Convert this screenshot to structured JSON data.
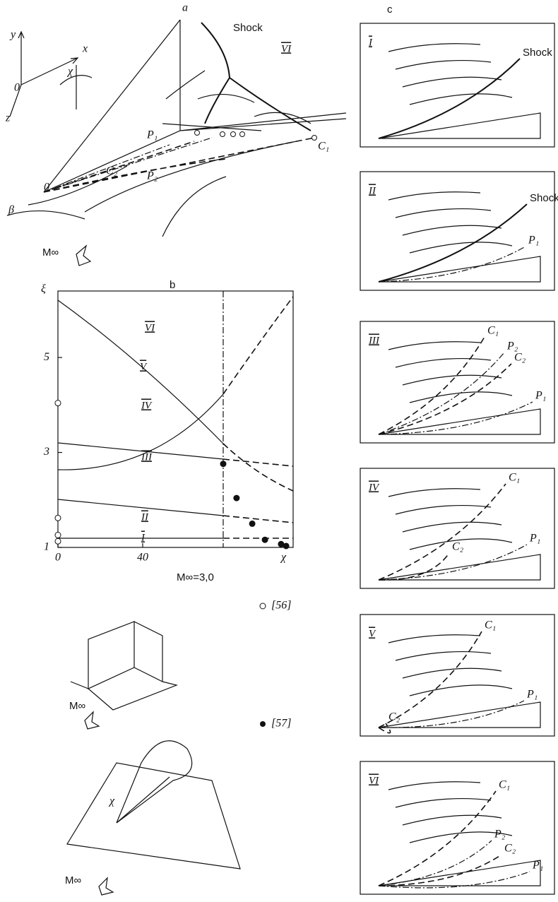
{
  "panel_a": {
    "label": "a",
    "shock": "Shock",
    "region": "VI",
    "axis_y": "y",
    "axis_x": "x",
    "axis_z": "z",
    "axis_origin": "0",
    "chi": "χ",
    "p1": "P₁",
    "c1": "C₁",
    "c2": "C₂",
    "p2": "P₂",
    "beta": "β",
    "apex": "0",
    "mach": "M∞"
  },
  "panel_b": {
    "label": "b",
    "y_label": "ξ",
    "x_label": "χ",
    "ylim": [
      1,
      6.4
    ],
    "yticks": [
      1,
      3,
      5
    ],
    "xlim": [
      0,
      111
    ],
    "xticks": [
      0,
      40
    ],
    "regions": [
      "I",
      "II",
      "III",
      "IV",
      "V",
      "VI"
    ],
    "open_points": {
      "x": [
        0,
        0,
        0,
        0
      ],
      "y": [
        4.04,
        1.62,
        1.26,
        1.13
      ]
    },
    "filled_points": {
      "x": [
        78,
        84.3,
        91.7,
        97.7,
        105.3,
        107.7
      ],
      "y": [
        2.76,
        2.04,
        1.5,
        1.16,
        1.07,
        1.03
      ]
    },
    "condition": "M∞=3,0",
    "legend": [
      "[56]",
      "[57]"
    ],
    "inset_mach": [
      "M∞",
      "M∞"
    ],
    "inset_chi": "χ"
  },
  "panel_c": {
    "label": "c",
    "panels": [
      {
        "numeral": "I",
        "labels": [
          "Shock"
        ]
      },
      {
        "numeral": "II",
        "labels": [
          "Shock",
          "P₁"
        ]
      },
      {
        "numeral": "III",
        "labels": [
          "C₁",
          "P₂",
          "C₂",
          "P₁"
        ]
      },
      {
        "numeral": "IV",
        "labels": [
          "C₁",
          "C₂",
          "P₁"
        ]
      },
      {
        "numeral": "V",
        "labels": [
          "C₁",
          "C₂",
          "P₁"
        ]
      },
      {
        "numeral": "VI",
        "labels": [
          "C₁",
          "P₂",
          "C₂",
          "P₁"
        ]
      }
    ]
  }
}
